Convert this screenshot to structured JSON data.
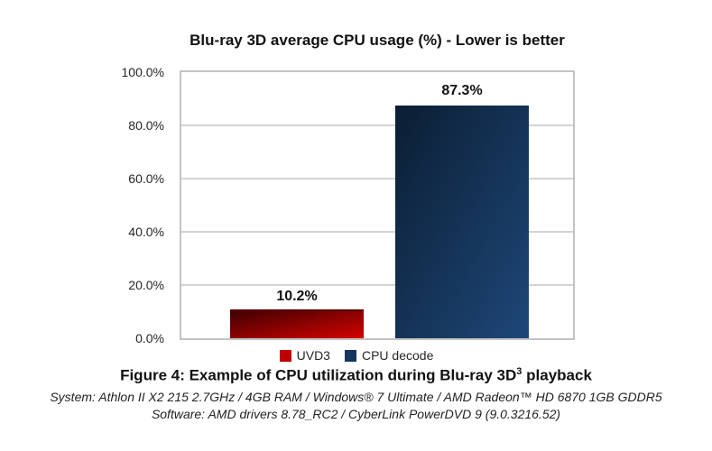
{
  "chart_data": {
    "type": "bar",
    "title": "Blu-ray 3D average CPU usage (%) - Lower is better",
    "categories": [
      "UVD3",
      "CPU decode"
    ],
    "values": [
      10.2,
      87.3
    ],
    "value_labels": [
      "10.2%",
      "87.3%"
    ],
    "xlabel": "",
    "ylabel": "",
    "ylim": [
      0,
      100
    ],
    "ytick_labels": [
      "100.0%",
      "80.0%",
      "60.0%",
      "40.0%",
      "20.0%",
      "0.0%"
    ],
    "grid": true,
    "legend_position": "bottom",
    "series_colors": [
      "#c00000",
      "#17365d"
    ],
    "background_color": "#ffffff",
    "gridline_color": "#d4d4d4"
  },
  "legend": {
    "items": [
      {
        "label": "UVD3",
        "color": "#c00000"
      },
      {
        "label": "CPU decode",
        "color": "#17365d"
      }
    ]
  },
  "caption": {
    "figure_prefix": "Figure 4: Example of CPU utilization during Blu-ray 3D",
    "figure_superscript": "3",
    "figure_suffix": " playback",
    "system_line": "System: Athlon II X2 215 2.7GHz / 4GB RAM / Windows® 7 Ultimate / AMD Radeon™ HD 6870 1GB GDDR5",
    "software_line": "Software: AMD drivers 8.78_RC2 / CyberLink PowerDVD 9 (9.0.3216.52)"
  }
}
